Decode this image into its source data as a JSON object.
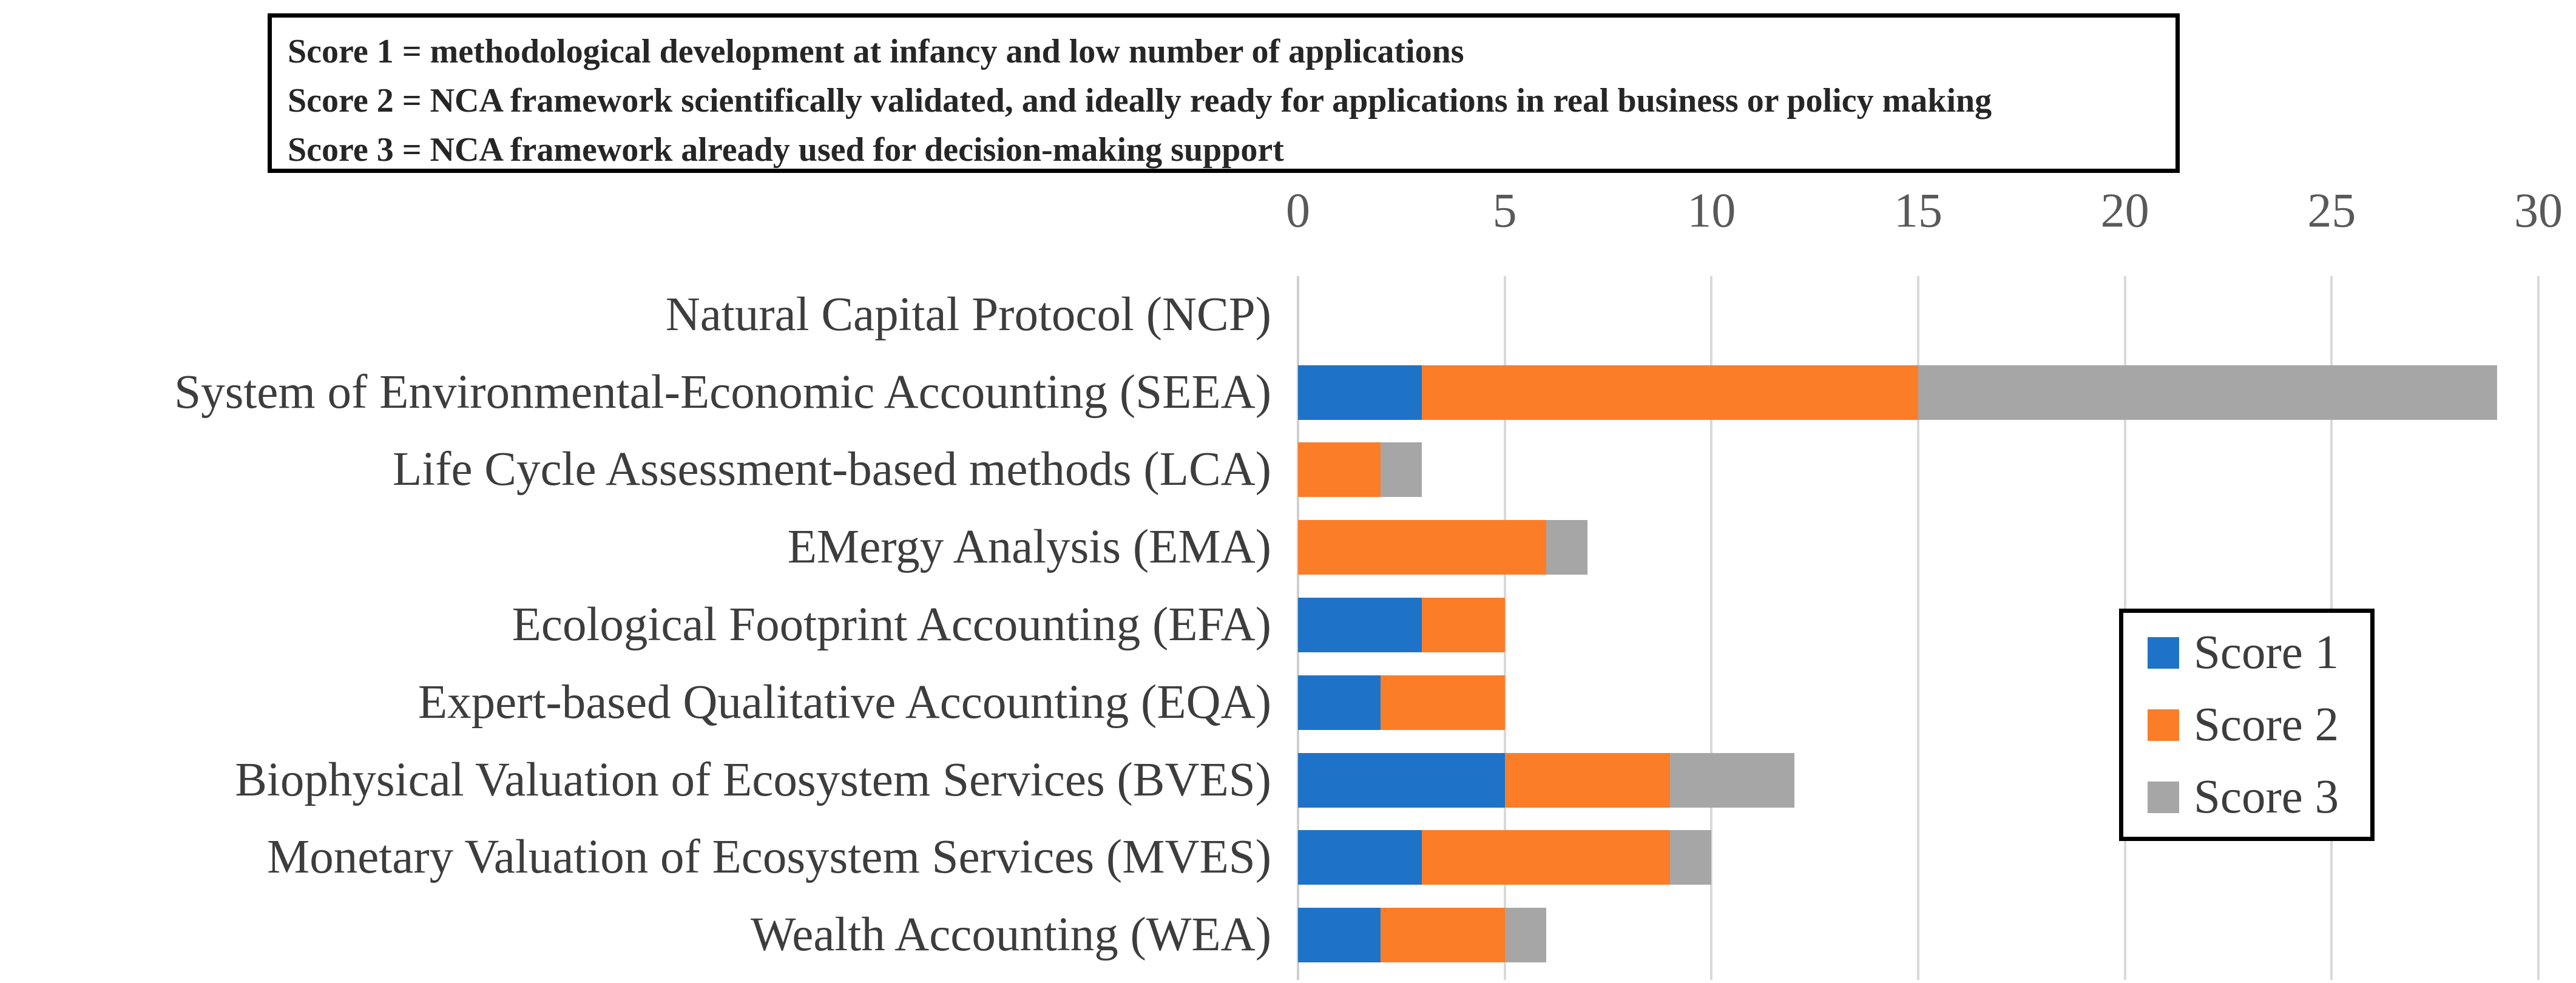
{
  "note_box": {
    "lines": [
      "Score 1 = methodological development at infancy and low number of applications",
      "Score 2 = NCA framework scientifically validated, and ideally ready for applications in real business or policy making",
      "Score 3 = NCA framework already used for decision-making support"
    ]
  },
  "chart_data": {
    "type": "bar",
    "orientation": "horizontal",
    "stacked": true,
    "title": "",
    "xlabel": "",
    "ylabel": "",
    "xlim": [
      0,
      30
    ],
    "x_ticks": [
      0,
      5,
      10,
      15,
      20,
      25,
      30
    ],
    "grid": "vertical",
    "gridline_color": "#d9d9d9",
    "tick_label_color": "#595959",
    "category_label_color": "#3d3d3d",
    "legend_position": "middle-right",
    "categories": [
      "Natural Capital Protocol (NCP)",
      "System of Environmental-Economic Accounting (SEEA)",
      "Life Cycle Assessment-based methods (LCA)",
      "EMergy Analysis (EMA)",
      "Ecological Footprint Accounting (EFA)",
      "Expert-based Qualitative Accounting  (EQA)",
      "Biophysical Valuation of Ecosystem Services (BVES)",
      "Monetary Valuation of Ecosystem Services (MVES)",
      "Wealth Accounting (WEA)"
    ],
    "series": [
      {
        "name": "Score 1",
        "color": "#1e73c8",
        "values": [
          0,
          3,
          0,
          0,
          3,
          2,
          5,
          3,
          2
        ]
      },
      {
        "name": "Score 2",
        "color": "#fb7d28",
        "values": [
          0,
          12,
          2,
          6,
          2,
          3,
          4,
          6,
          3
        ]
      },
      {
        "name": "Score 3",
        "color": "#a6a6a6",
        "values": [
          0,
          14,
          1,
          1,
          0,
          0,
          3,
          1,
          1
        ]
      }
    ],
    "stacked_totals": [
      0,
      29,
      3,
      7,
      5,
      5,
      12,
      10,
      6
    ]
  },
  "legend": {
    "items": [
      "Score 1",
      "Score 2",
      "Score 3"
    ]
  }
}
